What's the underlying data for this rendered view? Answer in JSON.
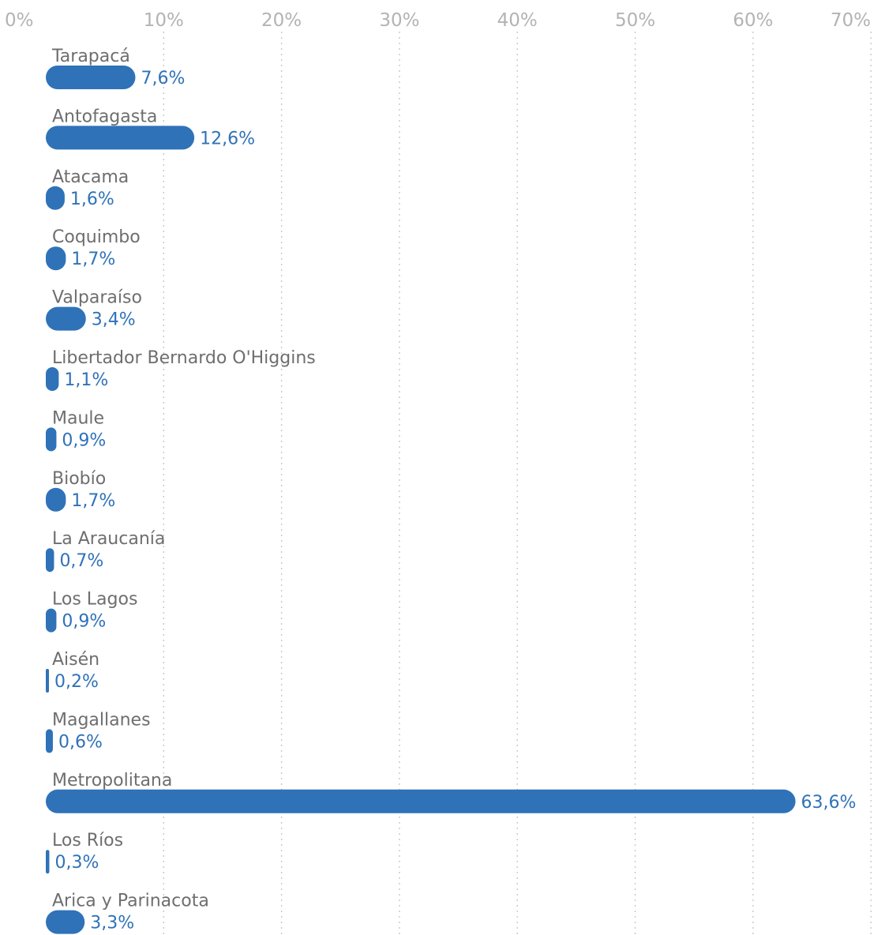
{
  "colors": {
    "bar": "#2f72b8",
    "value_text": "#2f72b8",
    "category_text": "#6e6e6e",
    "tick_text": "#b3b3b3",
    "grid": "#c8c8c8"
  },
  "chart_data": {
    "type": "bar",
    "orientation": "horizontal",
    "grid": true,
    "xlim": [
      0,
      70
    ],
    "x_ticks": [
      0,
      10,
      20,
      30,
      40,
      50,
      60,
      70
    ],
    "x_tick_labels": [
      "0%",
      "10%",
      "20%",
      "30%",
      "40%",
      "50%",
      "60%",
      "70%"
    ],
    "categories": [
      "Tarapacá",
      "Antofagasta",
      "Atacama",
      "Coquimbo",
      "Valparaíso",
      "Libertador Bernardo O'Higgins",
      "Maule",
      "Biobío",
      "La Araucanía",
      "Los Lagos",
      "Aisén",
      "Magallanes",
      "Metropolitana",
      "Los Ríos",
      "Arica y Parinacota"
    ],
    "values": [
      7.6,
      12.6,
      1.6,
      1.7,
      3.4,
      1.1,
      0.9,
      1.7,
      0.7,
      0.9,
      0.2,
      0.6,
      63.6,
      0.3,
      3.3
    ],
    "value_labels": [
      "7,6%",
      "12,6%",
      "1,6%",
      "1,7%",
      "3,4%",
      "1,1%",
      "0,9%",
      "1,7%",
      "0,7%",
      "0,9%",
      "0,2%",
      "0,6%",
      "63,6%",
      "0,3%",
      "3,3%"
    ]
  }
}
